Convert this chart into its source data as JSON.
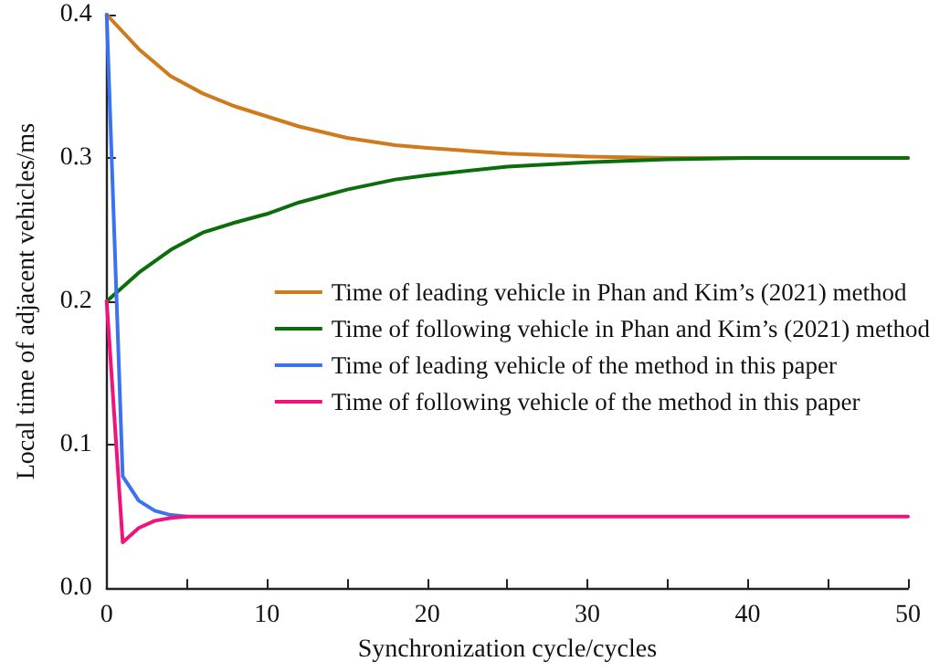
{
  "chart_data": {
    "type": "line",
    "xlabel": "Synchronization cycle/cycles",
    "ylabel": "Local time of adjacent vehicles/ms",
    "xlim": [
      0,
      50
    ],
    "xticks": [
      0,
      {
        "value": 5,
        "label": null
      },
      10,
      {
        "value": 15,
        "label": null
      },
      20,
      {
        "value": 25,
        "label": null
      },
      30,
      {
        "value": 35,
        "label": null
      },
      40,
      {
        "value": 45,
        "label": null
      },
      50
    ],
    "ylim": [
      0,
      0.4
    ],
    "yticks": [
      {
        "value": 0,
        "label": "0.0"
      },
      0.1,
      0.2,
      0.3,
      0.4
    ],
    "grid": false,
    "legend": "right",
    "marker": "none",
    "line_style": "solid",
    "series": [
      {
        "name": "Time of leading vehicle in Phan and Kim’s (2021) method",
        "color": "#d07a1e",
        "x": [
          0,
          2,
          4,
          6,
          8,
          10,
          12,
          15,
          18,
          20,
          25,
          30,
          35,
          50
        ],
        "values": [
          0.4,
          0.376,
          0.357,
          0.345,
          0.336,
          0.329,
          0.322,
          0.314,
          0.309,
          0.307,
          0.303,
          0.301,
          0.3,
          0.3
        ]
      },
      {
        "name": "Time of following vehicle in Phan and Kim’s (2021) method",
        "color": "#0b6e0b",
        "x": [
          0,
          2,
          4,
          6,
          8,
          10,
          12,
          15,
          18,
          20,
          25,
          30,
          35,
          40,
          50
        ],
        "values": [
          0.2,
          0.22,
          0.236,
          0.248,
          0.255,
          0.261,
          0.269,
          0.278,
          0.285,
          0.288,
          0.294,
          0.297,
          0.299,
          0.3,
          0.3
        ]
      },
      {
        "name": "Time of leading vehicle of the method in this paper",
        "color": "#3a72f0",
        "x": [
          0,
          1,
          2,
          3,
          4,
          5
        ],
        "values": [
          0.4,
          0.078,
          0.061,
          0.054,
          0.051,
          0.05
        ]
      },
      {
        "name": "Time of following vehicle of the method in this paper",
        "color": "#f0147a",
        "x": [
          0,
          1,
          2,
          3,
          4,
          5,
          6,
          50
        ],
        "values": [
          0.2,
          0.032,
          0.042,
          0.047,
          0.049,
          0.05,
          0.05,
          0.05
        ]
      }
    ]
  }
}
